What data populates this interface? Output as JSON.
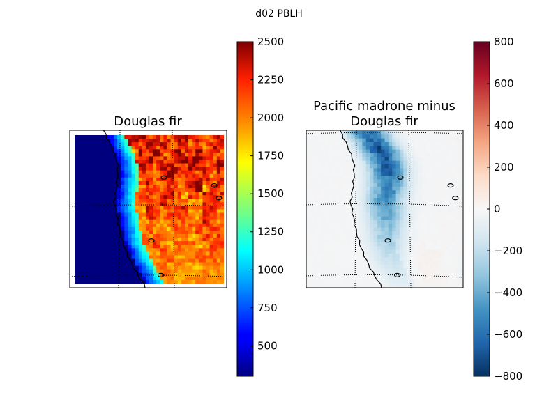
{
  "figure_title": "d02 PBLH",
  "chart_data": [
    {
      "type": "heatmap",
      "title": "Douglas fir",
      "map": "regional map of the US west coast with coastline, lakes and lat/lon grid",
      "grid": true,
      "colormap": "jet",
      "colorbar": {
        "vmin": 300,
        "vmax": 2500,
        "ticks": [
          500,
          750,
          1000,
          1250,
          1500,
          1750,
          2000,
          2250,
          2500
        ],
        "tick_labels": [
          "500",
          "750",
          "1000",
          "1250",
          "1500",
          "1750",
          "2000",
          "2250",
          "2500"
        ]
      },
      "pattern": {
        "ocean_value": 300,
        "coastal_values": [
          500,
          1300
        ],
        "interior_values": [
          1300,
          2500
        ],
        "maximum_region": "northern interior"
      }
    },
    {
      "type": "heatmap",
      "title": "Pacific madrone minus\nDouglas fir",
      "title_lines": [
        "Pacific madrone minus",
        "Douglas fir"
      ],
      "map": "regional map of the US west coast with coastline, lakes and lat/lon grid",
      "grid": true,
      "colormap": "RdBu_r",
      "colorbar": {
        "vmin": -800,
        "vmax": 800,
        "ticks": [
          800,
          600,
          400,
          200,
          0,
          -200,
          -400,
          -600,
          -800
        ],
        "tick_labels": [
          "800",
          "600",
          "400",
          "200",
          "0",
          "−200",
          "−400",
          "−600",
          "−800"
        ]
      },
      "pattern": {
        "ocean_value": 0,
        "minimum_region": "northern coastal interior",
        "min_value": -800,
        "positive_region": "southern interior",
        "max_value": 150
      }
    }
  ]
}
